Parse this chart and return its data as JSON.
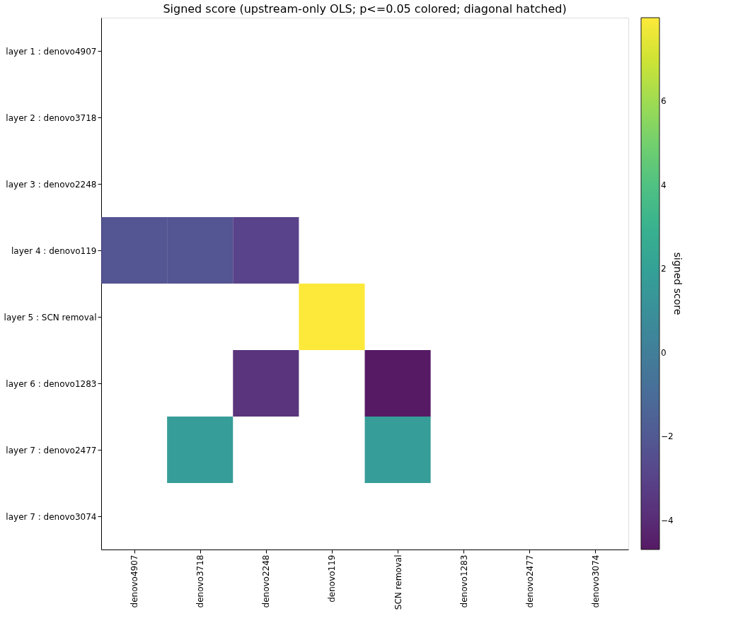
{
  "chart_data": {
    "type": "heatmap",
    "title": "Signed score (upstream-only OLS; p<=0.05 colored; diagonal hatched)",
    "categories": [
      "denovo4907",
      "denovo3718",
      "denovo2248",
      "denovo119",
      "SCN removal",
      "denovo1283",
      "denovo2477",
      "denovo3074"
    ],
    "y_categories": [
      "layer 1 : denovo4907",
      "layer 2 : denovo3718",
      "layer 3 : denovo2248",
      "layer 4 : denovo119",
      "layer 5 : SCN removal",
      "layer 6 : denovo1283",
      "layer 7 : denovo2477",
      "layer 7 : denovo3074"
    ],
    "cells": [
      [
        null,
        null,
        null,
        null,
        null,
        null,
        null,
        null
      ],
      [
        null,
        null,
        null,
        null,
        null,
        null,
        null,
        null
      ],
      [
        null,
        null,
        null,
        null,
        null,
        null,
        null,
        null
      ],
      [
        -2.2,
        -2.2,
        -3.0,
        null,
        null,
        null,
        null,
        null
      ],
      [
        null,
        null,
        null,
        8.0,
        null,
        null,
        null,
        null
      ],
      [
        null,
        null,
        -3.7,
        null,
        -4.7,
        null,
        null,
        null
      ],
      [
        null,
        1.7,
        null,
        null,
        1.7,
        null,
        null,
        null
      ],
      [
        null,
        null,
        null,
        null,
        null,
        null,
        null,
        null
      ]
    ],
    "clabel": "signed score",
    "clim": [
      -4.7,
      8.0
    ],
    "cticks": [
      -4,
      -2,
      0,
      2,
      4,
      6
    ]
  }
}
